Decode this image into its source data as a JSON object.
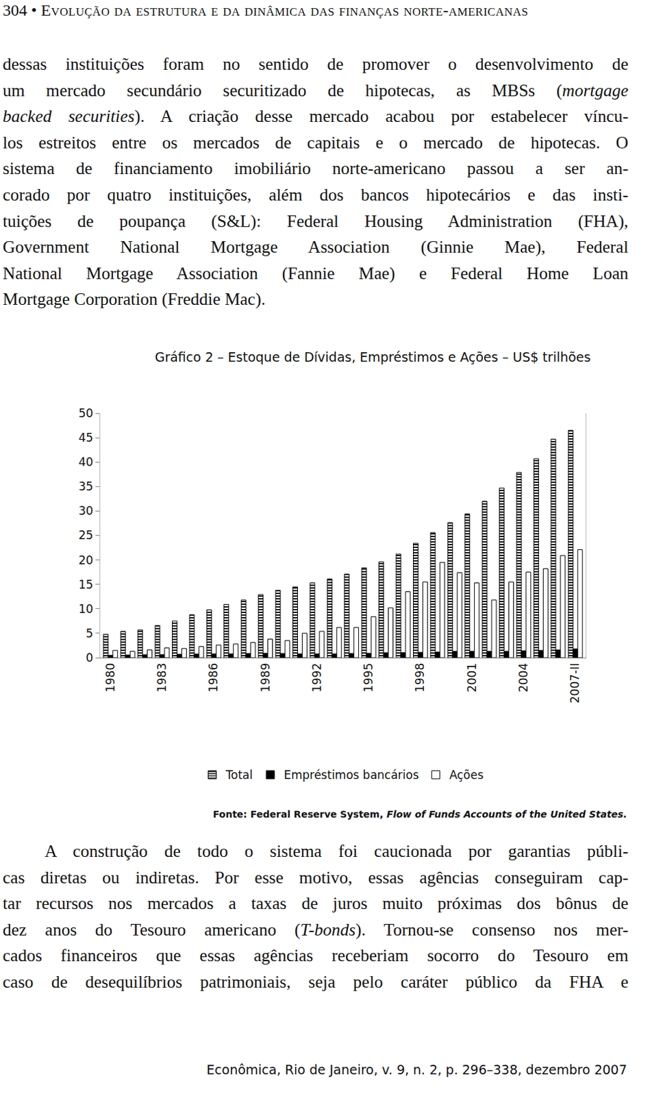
{
  "header": {
    "page": "304",
    "separator": "•",
    "running_title": "Evolução da estrutura e da dinâmica das finanças norte-americanas"
  },
  "paragraphs": [
    {
      "lines": [
        [
          "dessas instituições foram no sentido de promover o desenvolvimento de"
        ],
        [
          "um mercado secundário securitizado de hipotecas, as MBSs (",
          {
            "text": "mortgage",
            "italic": true
          }
        ],
        [
          {
            "text": "backed securities",
            "italic": true
          },
          "). A criação desse mercado acabou por estabelecer víncu-"
        ],
        [
          "los estreitos entre os mercados de capitais e o mercado de hipotecas. O"
        ],
        [
          "sistema de financiamento imobiliário norte-americano passou a ser an-"
        ],
        [
          "corado por quatro instituições, além dos bancos hipotecários e das insti-"
        ],
        [
          "tuições de poupança (S&L): Federal Housing Administration (FHA),"
        ],
        [
          "Government National Mortgage Association (Ginnie Mae), Federal"
        ],
        [
          "National Mortgage Association (Fannie Mae) e Federal Home Loan"
        ],
        [
          "Mortgage Corporation (Freddie Mac)."
        ]
      ]
    },
    {
      "lines": [
        [
          "A construção de todo o sistema foi caucionada por garantias públi-"
        ],
        [
          "cas diretas ou indiretas. Por esse motivo, essas agências conseguiram cap-"
        ],
        [
          "tar recursos nos mercados a taxas de juros muito próximas dos bônus de"
        ],
        [
          "dez anos do Tesouro americano (",
          {
            "text": "T-bonds",
            "italic": true
          },
          "). Tornou-se consenso nos mer-"
        ],
        [
          "cados financeiros que essas agências receberiam socorro do Tesouro em"
        ],
        [
          "caso de desequilíbrios patrimoniais, seja pelo caráter público da FHA e"
        ]
      ]
    }
  ],
  "chart_data": {
    "type": "bar",
    "title": "Gráfico 2 – Estoque de Dívidas, Empréstimos e Ações – US$ trilhões",
    "categories": [
      "1980",
      null,
      null,
      "1983",
      null,
      null,
      "1986",
      null,
      null,
      "1989",
      null,
      null,
      "1992",
      null,
      null,
      "1995",
      null,
      null,
      "1998",
      null,
      null,
      "2001",
      null,
      null,
      "2004",
      null,
      null,
      "2007-II"
    ],
    "series": [
      {
        "name": "Total",
        "color": "#000000",
        "values": [
          4.8,
          5.4,
          5.7,
          6.6,
          7.5,
          8.8,
          9.8,
          10.9,
          11.8,
          12.9,
          13.8,
          14.5,
          15.3,
          16.1,
          17.1,
          18.4,
          19.6,
          21.2,
          23.4,
          25.6,
          27.6,
          29.4,
          32.0,
          34.7,
          37.9,
          40.7,
          44.7,
          46.5
        ]
      },
      {
        "name": "Empréstimos bancários",
        "color": "#000000",
        "values": [
          0.5,
          0.55,
          0.6,
          0.65,
          0.7,
          0.75,
          0.8,
          0.8,
          0.85,
          0.9,
          0.85,
          0.8,
          0.8,
          0.8,
          0.85,
          0.9,
          1.0,
          1.05,
          1.1,
          1.15,
          1.3,
          1.3,
          1.3,
          1.3,
          1.4,
          1.5,
          1.6,
          1.8
        ]
      },
      {
        "name": "Ações",
        "color": "#ffffff",
        "values": [
          1.5,
          1.3,
          1.6,
          2.0,
          1.9,
          2.3,
          2.6,
          2.8,
          3.1,
          3.8,
          3.5,
          5.0,
          5.4,
          6.2,
          6.2,
          8.4,
          10.2,
          13.5,
          15.5,
          19.5,
          17.4,
          15.3,
          11.8,
          15.5,
          17.5,
          18.2,
          20.9,
          22.1
        ]
      }
    ],
    "ylim": [
      0,
      50
    ],
    "yticks": [
      0,
      5,
      10,
      15,
      20,
      25,
      30,
      35,
      40,
      45,
      50
    ],
    "grid": false,
    "legend": "bottom",
    "source": [
      "Fonte: Federal Reserve System, ",
      {
        "text": "Flow of Funds Accounts of the United States.",
        "italic": true
      }
    ]
  },
  "footer": "Econômica, Rio de Janeiro, v. 9, n. 2, p. 296–338, dezembro 2007"
}
